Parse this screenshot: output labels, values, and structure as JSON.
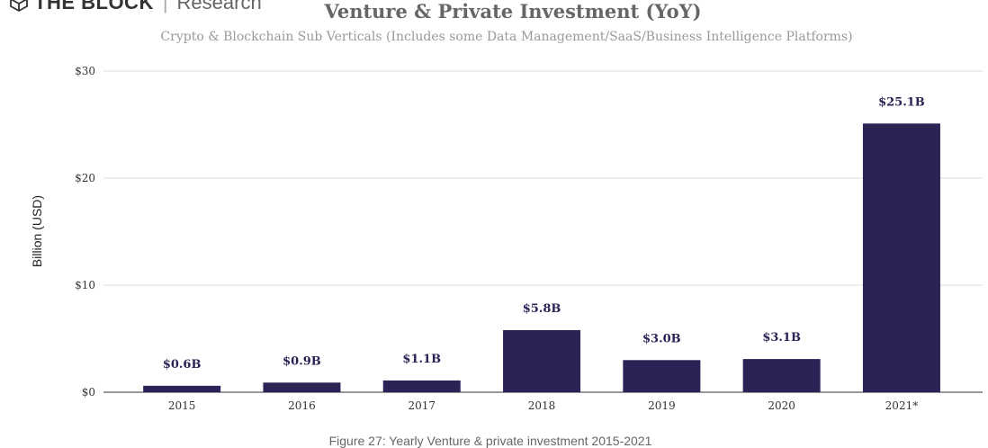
{
  "logo": {
    "brand": "THE BLOCK",
    "sub": "Research"
  },
  "caption": "Figure 27: Yearly Venture & private investment 2015-2021",
  "chart_data": {
    "type": "bar",
    "title": "Venture & Private Investment (YoY)",
    "subtitle": "Crypto & Blockchain Sub Verticals (Includes some Data Management/SaaS/Business Intelligence Platforms)",
    "xlabel": "",
    "ylabel": "Billion (USD)",
    "ylim": [
      0,
      30
    ],
    "yticks": [
      0,
      10,
      20,
      30
    ],
    "ytick_labels": [
      "$0",
      "$10",
      "$20",
      "$30"
    ],
    "grid": true,
    "categories": [
      "2015",
      "2016",
      "2017",
      "2018",
      "2019",
      "2020",
      "2021*"
    ],
    "values": [
      0.6,
      0.9,
      1.1,
      5.8,
      3.0,
      3.1,
      25.1
    ],
    "data_labels": [
      "$0.6B",
      "$0.9B",
      "$1.1B",
      "$5.8B",
      "$3.0B",
      "$3.1B",
      "$25.1B"
    ],
    "bar_color": "#2b2255"
  }
}
